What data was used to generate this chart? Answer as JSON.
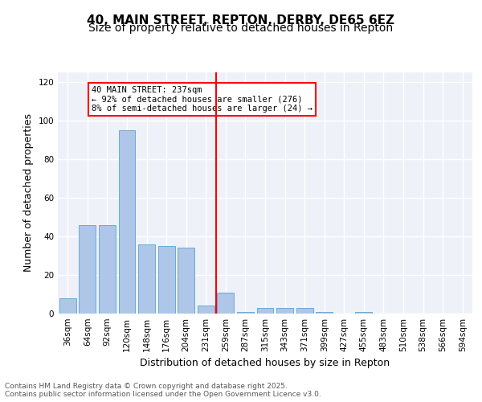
{
  "title": "40, MAIN STREET, REPTON, DERBY, DE65 6EZ",
  "subtitle": "Size of property relative to detached houses in Repton",
  "xlabel": "Distribution of detached houses by size in Repton",
  "ylabel": "Number of detached properties",
  "bar_labels": [
    "36sqm",
    "64sqm",
    "92sqm",
    "120sqm",
    "148sqm",
    "176sqm",
    "204sqm",
    "231sqm",
    "259sqm",
    "287sqm",
    "315sqm",
    "343sqm",
    "371sqm",
    "399sqm",
    "427sqm",
    "455sqm",
    "483sqm",
    "510sqm",
    "538sqm",
    "566sqm",
    "594sqm"
  ],
  "bar_values": [
    8,
    46,
    46,
    95,
    36,
    35,
    34,
    4,
    11,
    1,
    3,
    3,
    3,
    1,
    0,
    1,
    0,
    0,
    0,
    0,
    0
  ],
  "bar_color": "#aec6e8",
  "bar_edgecolor": "#6aaad4",
  "bg_color": "#eef2f8",
  "grid_color": "#ffffff",
  "vline_x": 7,
  "vline_color": "red",
  "annotation_text": "40 MAIN STREET: 237sqm\n← 92% of detached houses are smaller (276)\n8% of semi-detached houses are larger (24) →",
  "annotation_box_color": "white",
  "annotation_box_edgecolor": "red",
  "ylim": [
    0,
    125
  ],
  "yticks": [
    0,
    20,
    40,
    60,
    80,
    100,
    120
  ],
  "footer": "Contains HM Land Registry data © Crown copyright and database right 2025.\nContains public sector information licensed under the Open Government Licence v3.0.",
  "title_fontsize": 11,
  "subtitle_fontsize": 10,
  "ylabel_fontsize": 9,
  "xlabel_fontsize": 9,
  "tick_fontsize": 7.5,
  "footer_fontsize": 6.5
}
